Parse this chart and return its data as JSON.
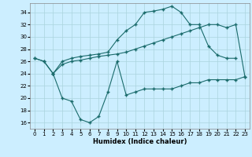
{
  "xlabel": "Humidex (Indice chaleur)",
  "bg_color": "#cceeff",
  "grid_color": "#aad4dd",
  "line_color": "#1a6b6b",
  "xlim": [
    -0.5,
    23.5
  ],
  "ylim": [
    15,
    35.5
  ],
  "yticks": [
    16,
    18,
    20,
    22,
    24,
    26,
    28,
    30,
    32,
    34
  ],
  "xticks": [
    0,
    1,
    2,
    3,
    4,
    5,
    6,
    7,
    8,
    9,
    10,
    11,
    12,
    13,
    14,
    15,
    16,
    17,
    18,
    19,
    20,
    21,
    22,
    23
  ],
  "line_top_x": [
    0,
    1,
    2,
    3,
    4,
    5,
    6,
    7,
    8,
    9,
    10,
    11,
    12,
    13,
    14,
    15,
    16,
    17,
    18,
    19,
    20,
    21,
    22
  ],
  "line_top_y": [
    26.5,
    26.0,
    24.0,
    26.0,
    26.5,
    26.8,
    27.0,
    27.2,
    27.5,
    29.5,
    31.0,
    32.0,
    34.0,
    34.2,
    34.5,
    35.0,
    34.0,
    32.0,
    32.0,
    28.5,
    27.0,
    26.5,
    26.5
  ],
  "line_mid_x": [
    0,
    1,
    2,
    3,
    4,
    5,
    6,
    7,
    8,
    9,
    10,
    11,
    12,
    13,
    14,
    15,
    16,
    17,
    18,
    19,
    20,
    21,
    22,
    23
  ],
  "line_mid_y": [
    26.5,
    26.0,
    24.0,
    25.5,
    26.0,
    26.2,
    26.5,
    26.8,
    27.0,
    27.2,
    27.5,
    28.0,
    28.5,
    29.0,
    29.5,
    30.0,
    30.5,
    31.0,
    31.5,
    32.0,
    32.0,
    31.5,
    32.0,
    23.5
  ],
  "line_bot_x": [
    2,
    3,
    4,
    5,
    6,
    7,
    8,
    9,
    10,
    11,
    12,
    13,
    14,
    15,
    16,
    17,
    18,
    19,
    20,
    21,
    22,
    23
  ],
  "line_bot_y": [
    24.0,
    20.0,
    19.5,
    16.5,
    16.0,
    17.0,
    21.0,
    26.0,
    20.5,
    21.0,
    21.5,
    21.5,
    21.5,
    21.5,
    22.0,
    22.5,
    22.5,
    23.0,
    23.0,
    23.0,
    23.0,
    23.5
  ]
}
